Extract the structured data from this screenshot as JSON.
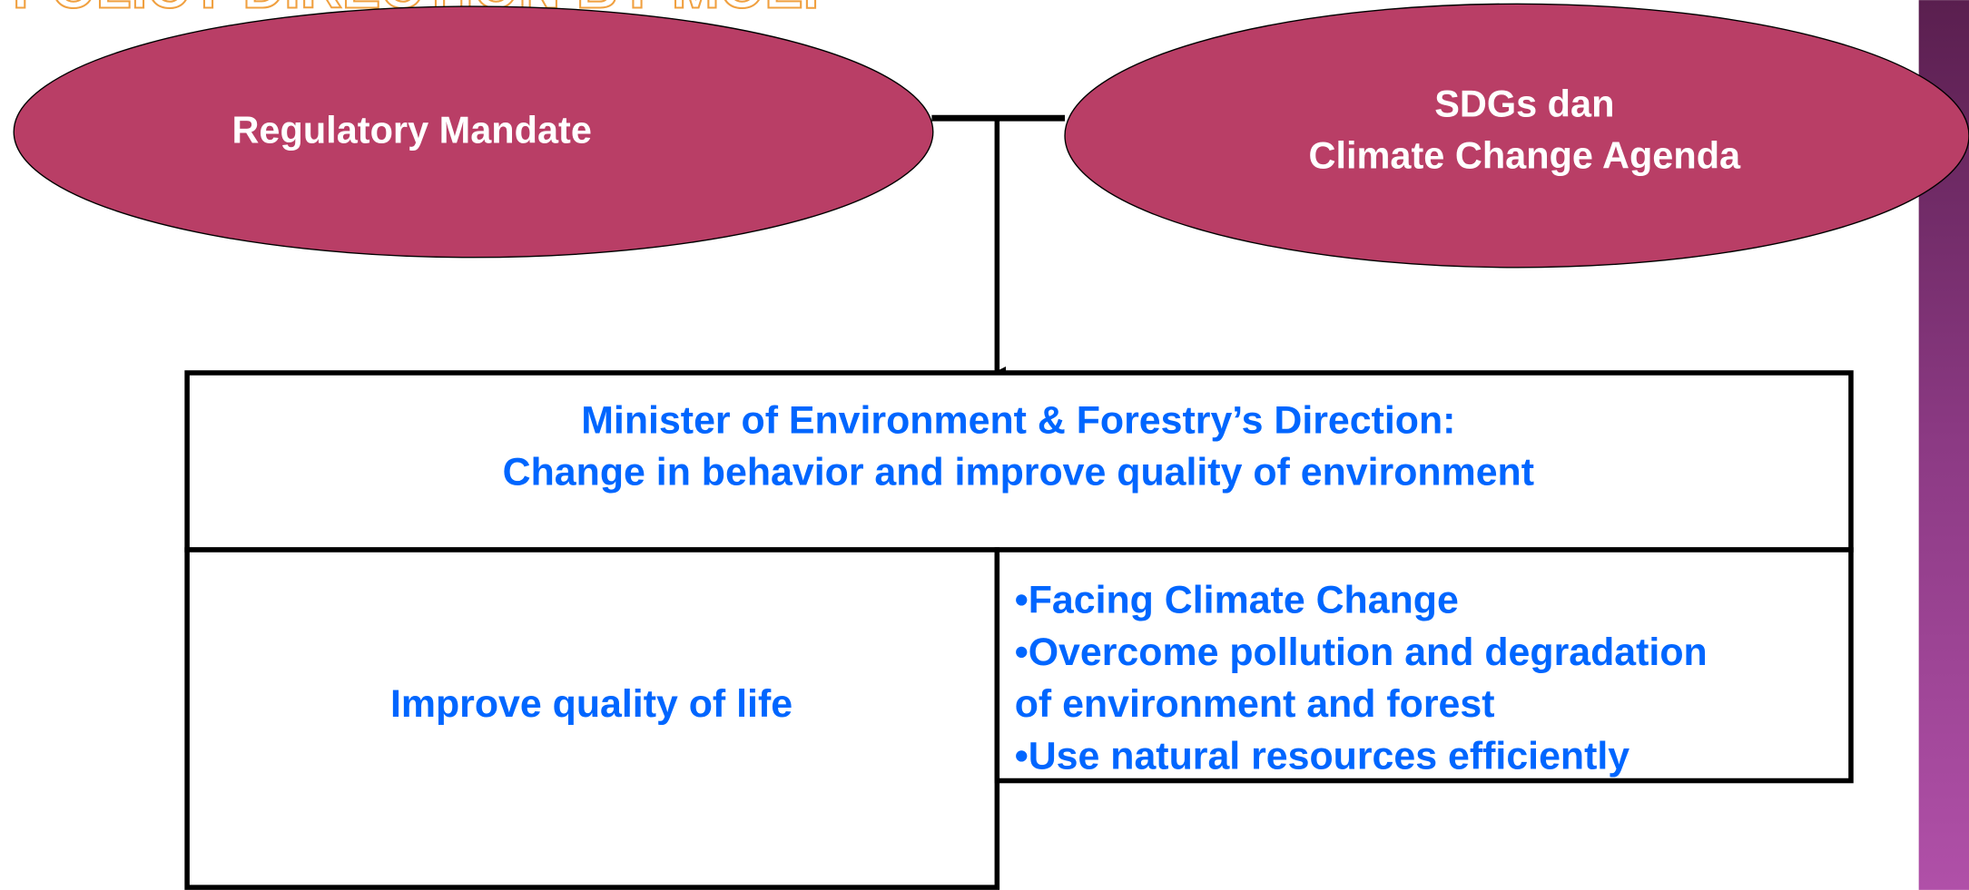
{
  "header": {
    "title": "POLICY DIRECTION BY MOEF"
  },
  "nodes": [
    {
      "label": [
        "Regulatory Mandate"
      ]
    },
    {
      "label": [
        "SDGs dan",
        "Climate Change Agenda"
      ]
    },
    {
      "label": [
        "Minister of Environment & Forestry’s Direction:",
        "Change in behavior and improve quality of environment"
      ]
    },
    {
      "label": [
        "Improve quality of life"
      ]
    },
    {
      "label": [
        "•Facing Climate Change",
        "•Overcome pollution and degradation",
        "of environment and forest",
        "•Use natural resources efficiently"
      ]
    }
  ]
}
